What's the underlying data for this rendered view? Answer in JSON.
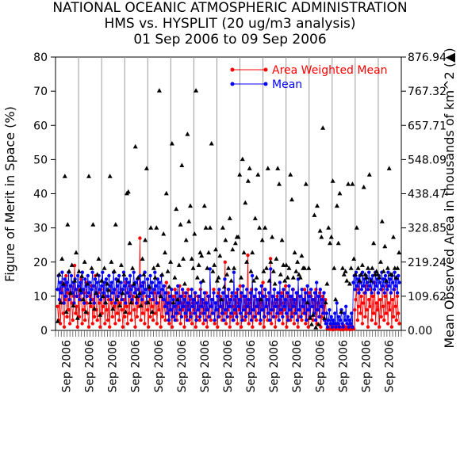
{
  "chart_data": {
    "type": "scatter",
    "title": "NATIONAL OCEANIC ATMOSPHERIC ADMINISTRATION",
    "subtitle": "HMS vs. HYSPLIT (20 ug/m3 analysis)",
    "date_range": "01 Sep 2006 to 09 Sep 2006",
    "ylabel": "Figure of Merit in Space (%)",
    "y2label": "Mean Observed Area in thousands of km^2 (▲)",
    "ylim": [
      0,
      80
    ],
    "y2lim": [
      0.0,
      876.94
    ],
    "yticks": [
      "0",
      "10",
      "20",
      "30",
      "40",
      "50",
      "60",
      "70",
      "80"
    ],
    "y2ticks": [
      "0.00",
      "109.62",
      "219.24",
      "328.85",
      "438.47",
      "548.09",
      "657.71",
      "767.32",
      "876.94"
    ],
    "xtick_labels": [
      "Sep 2006",
      "Sep 2006",
      "Sep 2006",
      "Sep 2006",
      "Sep 2006",
      "Sep 2006",
      "Sep 2006",
      "Sep 2006",
      "Sep 2006",
      "Sep 2006",
      "Sep 2006",
      "Sep 2006",
      "Sep 2006",
      "Sep 2006",
      "Sep 2006"
    ],
    "legend": [
      {
        "name": "Area Weighted Mean",
        "color": "#ff0000"
      },
      {
        "name": "Mean",
        "color": "#0000ff"
      }
    ],
    "legend_position": "top-right",
    "n_groups": 15,
    "series": [
      {
        "name": "Area Weighted Mean",
        "color": "#ff0000",
        "values": [
          7,
          3,
          12,
          2,
          8,
          14,
          5,
          1,
          9,
          16,
          4,
          11,
          6,
          2,
          13,
          8,
          3,
          10,
          19,
          5,
          7,
          1,
          12,
          4,
          9,
          15,
          2,
          6,
          11,
          3,
          14,
          8,
          5,
          1,
          10,
          7,
          13,
          2,
          9,
          4,
          16,
          6,
          3,
          11,
          8,
          1,
          12,
          5,
          7,
          14,
          2,
          10,
          6,
          3,
          9,
          1,
          13,
          8,
          4,
          11,
          7,
          2,
          15,
          5,
          10,
          3,
          8,
          12,
          6,
          1,
          9,
          4,
          14,
          7,
          2,
          11,
          5,
          13,
          3,
          8,
          10,
          6,
          1,
          12,
          4,
          9,
          7,
          27,
          3,
          11,
          5,
          14,
          2,
          8,
          10,
          6,
          1,
          12,
          4,
          9,
          7,
          3,
          11,
          5,
          13,
          2,
          8,
          6,
          10,
          1,
          12,
          4,
          9,
          7,
          3,
          14,
          5,
          11,
          2,
          8,
          6,
          1,
          10,
          4,
          12,
          7,
          3,
          9,
          5,
          13,
          2,
          8,
          6,
          11,
          1,
          10,
          4,
          7,
          12,
          3,
          9,
          5,
          2,
          8,
          6,
          11,
          1,
          4,
          10,
          7,
          3,
          12,
          5,
          9,
          2,
          8,
          6,
          11,
          1,
          4,
          10,
          7,
          3,
          9,
          5,
          12,
          2,
          8,
          6,
          1,
          11,
          4,
          10,
          7,
          3,
          9,
          5,
          20,
          2,
          8,
          6,
          12,
          1,
          4,
          10,
          7,
          3,
          9,
          5,
          11,
          2,
          8,
          6,
          13,
          1,
          4,
          10,
          7,
          3,
          9,
          5,
          22,
          2,
          8,
          6,
          12,
          1,
          4,
          10,
          7,
          3,
          9,
          5,
          11,
          2,
          8,
          6,
          14,
          1,
          4,
          10,
          7,
          3,
          9,
          5,
          21,
          2,
          8,
          6,
          12,
          1,
          4,
          10,
          7,
          3,
          9,
          5,
          11,
          2,
          8,
          6,
          13,
          1,
          4,
          10,
          7,
          3,
          9,
          5,
          12,
          2,
          8,
          6,
          11,
          1,
          4,
          10,
          7,
          3,
          9,
          5,
          12,
          2,
          8,
          6,
          1,
          11,
          4,
          10,
          7,
          3,
          9,
          5,
          12,
          2,
          8,
          6,
          11,
          1,
          4,
          10,
          7,
          3,
          9,
          5,
          0.5,
          1,
          0.5,
          0.3,
          1.5,
          0.8,
          0.2,
          1,
          0.5,
          2,
          0.4,
          1.2,
          0.6,
          0.3,
          1,
          0.7,
          0.2,
          1.5,
          0.5,
          1,
          0.3,
          0.8,
          1,
          0.5,
          0.2,
          1.3,
          0.6,
          1,
          0.4,
          6,
          9,
          12,
          3,
          7,
          14,
          5,
          10,
          2,
          8,
          11,
          4,
          13,
          6,
          1,
          9,
          7,
          12,
          3,
          10,
          5,
          14,
          2,
          8,
          6,
          11,
          1,
          9,
          4,
          12,
          7,
          3,
          10,
          5,
          13,
          2,
          8,
          6,
          11,
          1,
          9,
          4,
          12,
          7,
          3,
          10,
          5,
          2
        ]
      },
      {
        "name": "Mean",
        "color": "#0000ff",
        "values": [
          12,
          16,
          9,
          14,
          11,
          17,
          13,
          8,
          15,
          10,
          14,
          12,
          17,
          9,
          13,
          16,
          11,
          14,
          8,
          15,
          12,
          10,
          16,
          13,
          9,
          14,
          11,
          17,
          12,
          8,
          15,
          13,
          10,
          16,
          11,
          14,
          9,
          12,
          17,
          13,
          8,
          15,
          11,
          14,
          10,
          16,
          12,
          9,
          13,
          17,
          11,
          14,
          8,
          15,
          12,
          10,
          16,
          13,
          9,
          14,
          11,
          17,
          12,
          8,
          15,
          13,
          10,
          16,
          11,
          14,
          9,
          12,
          17,
          13,
          8,
          15,
          11,
          14,
          10,
          16,
          12,
          9,
          13,
          17,
          11,
          14,
          8,
          15,
          12,
          10,
          16,
          13,
          9,
          14,
          11,
          17,
          12,
          8,
          15,
          13,
          10,
          16,
          11,
          14,
          9,
          12,
          17,
          13,
          8,
          15,
          11,
          14,
          10,
          16,
          12,
          9,
          13,
          7,
          11,
          5,
          8,
          3,
          10,
          6,
          12,
          4,
          9,
          7,
          3,
          11,
          5,
          13,
          8,
          6,
          10,
          4,
          12,
          7,
          9,
          5,
          11,
          3,
          8,
          6,
          10,
          4,
          12,
          7,
          9,
          5,
          11,
          3,
          8,
          6,
          10,
          4,
          14,
          7,
          9,
          5,
          11,
          3,
          8,
          6,
          10,
          4,
          18,
          7,
          9,
          5,
          11,
          3,
          8,
          6,
          10,
          4,
          12,
          7,
          9,
          5,
          11,
          3,
          15,
          6,
          10,
          4,
          12,
          7,
          9,
          5,
          11,
          3,
          17,
          6,
          10,
          4,
          12,
          7,
          9,
          5,
          11,
          3,
          13,
          6,
          10,
          4,
          12,
          7,
          9,
          5,
          11,
          3,
          16,
          6,
          10,
          4,
          12,
          7,
          9,
          5,
          11,
          3,
          13,
          6,
          10,
          4,
          12,
          7,
          9,
          5,
          11,
          3,
          18,
          6,
          10,
          4,
          12,
          7,
          9,
          5,
          11,
          3,
          14,
          6,
          10,
          4,
          12,
          7,
          9,
          5,
          11,
          3,
          13,
          6,
          10,
          4,
          12,
          7,
          9,
          5,
          11,
          3,
          15,
          6,
          10,
          4,
          12,
          7,
          9,
          5,
          11,
          3,
          13,
          6,
          10,
          4,
          12,
          7,
          9,
          5,
          11,
          3,
          14,
          6,
          10,
          4,
          12,
          7,
          9,
          5,
          11,
          3,
          2,
          5,
          1,
          3,
          6,
          2,
          4,
          1,
          3,
          2,
          5,
          1,
          8,
          2,
          4,
          1,
          3,
          6,
          2,
          1,
          5,
          3,
          7,
          2,
          4,
          1,
          3,
          2,
          5,
          1,
          14,
          16,
          12,
          17,
          13,
          15,
          11,
          16,
          14,
          12,
          17,
          13,
          15,
          11,
          16,
          14,
          12,
          17,
          13,
          15,
          11,
          16,
          14,
          12,
          17,
          13,
          15,
          11,
          16,
          14,
          12,
          17,
          13,
          15,
          11,
          16,
          14,
          12,
          17,
          13,
          15,
          11,
          16,
          14,
          12,
          17,
          13,
          15,
          11,
          16,
          14
        ]
      },
      {
        "name": "",
        "color": "#000000",
        "axis": "y2",
        "values": [
          30,
          180,
          90,
          230,
          150,
          495,
          60,
          340,
          190,
          120,
          210,
          80,
          160,
          250,
          40,
          190,
          130,
          175,
          100,
          220,
          60,
          150,
          495,
          90,
          200,
          340,
          70,
          120,
          180,
          230,
          50,
          160,
          110,
          200,
          90,
          150,
          130,
          495,
          220,
          70,
          190,
          340,
          100,
          160,
          80,
          210,
          120,
          180,
          60,
          440,
          445,
          280,
          90,
          200,
          150,
          590,
          110,
          170,
          120,
          80,
          230,
          180,
          290,
          520,
          90,
          140,
          330,
          60,
          200,
          170,
          330,
          210,
          770,
          110,
          180,
          310,
          250,
          440,
          190,
          140,
          220,
          600,
          90,
          170,
          390,
          100,
          210,
          340,
          530,
          230,
          150,
          290,
          630,
          350,
          400,
          230,
          200,
          310,
          770,
          170,
          210,
          250,
          240,
          160,
          400,
          330,
          200,
          250,
          330,
          600,
          190,
          210,
          260,
          160,
          170,
          240,
          100,
          330,
          140,
          290,
          180,
          200,
          360,
          160,
          260,
          200,
          280,
          300,
          300,
          500,
          170,
          550,
          250,
          410,
          220,
          480,
          520,
          190,
          250,
          160,
          360,
          170,
          500,
          330,
          100,
          290,
          190,
          330,
          200,
          520,
          160,
          220,
          300,
          190,
          150,
          230,
          520,
          470,
          180,
          290,
          210,
          160,
          210,
          170,
          200,
          500,
          420,
          170,
          250,
          190,
          220,
          180,
          170,
          240,
          200,
          200,
          470,
          90,
          200,
          40,
          20,
          50,
          370,
          10,
          400,
          20,
          320,
          300,
          650,
          40,
          90,
          150,
          330,
          280,
          300,
          480,
          200,
          100,
          400,
          280,
          440,
          60,
          200,
          180,
          190,
          160,
          470,
          150,
          200,
          470,
          230,
          180,
          330,
          200,
          160,
          180,
          210,
          460,
          180,
          170,
          200,
          500,
          160,
          200,
          280,
          180,
          190,
          180,
          170,
          220,
          350,
          190,
          270,
          160,
          200,
          520,
          180,
          180,
          300,
          200,
          170,
          200,
          250
        ]
      }
    ]
  }
}
